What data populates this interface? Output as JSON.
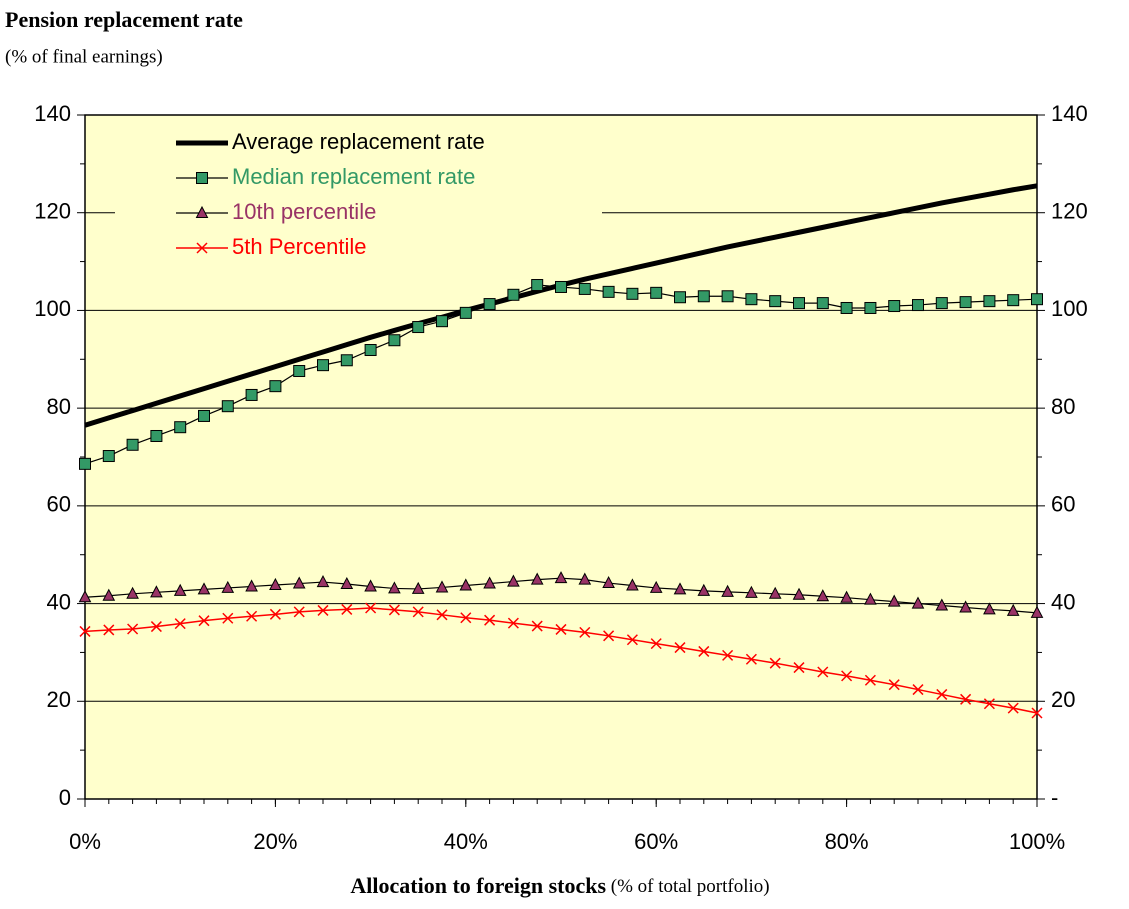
{
  "chart_data": {
    "type": "line",
    "title": "Pension replacement rate",
    "subtitle": "(% of final earnings)",
    "x_label": "Allocation to foreign stocks",
    "x_label_note": " (% of total portfolio)",
    "x": [
      0,
      2.5,
      5,
      7.5,
      10,
      12.5,
      15,
      17.5,
      20,
      22.5,
      25,
      27.5,
      30,
      32.5,
      35,
      37.5,
      40,
      42.5,
      45,
      47.5,
      50,
      52.5,
      55,
      57.5,
      60,
      62.5,
      65,
      67.5,
      70,
      72.5,
      75,
      77.5,
      80,
      82.5,
      85,
      87.5,
      90,
      92.5,
      95,
      97.5,
      100
    ],
    "xlim": [
      0,
      100
    ],
    "xticks": [
      {
        "value": 0,
        "label": "0%"
      },
      {
        "value": 20,
        "label": "20%"
      },
      {
        "value": 40,
        "label": "40%"
      },
      {
        "value": 60,
        "label": "60%"
      },
      {
        "value": 80,
        "label": "80%"
      },
      {
        "value": 100,
        "label": "100%"
      }
    ],
    "ylim": [
      0,
      140
    ],
    "yticks": [
      0,
      20,
      40,
      60,
      80,
      100,
      120,
      140
    ],
    "y2lim": [
      0,
      140
    ],
    "y2ticks": [
      {
        "value": 0,
        "label": "-"
      },
      20,
      40,
      60,
      80,
      100,
      120,
      140
    ],
    "grid": true,
    "background": "#ffffcc",
    "series": [
      {
        "name": "Average replacement rate",
        "color": "#000000",
        "line_color": "#000000",
        "line_width": 5,
        "marker": "none",
        "values": [
          76.5,
          78,
          79.5,
          81,
          82.5,
          84,
          85.5,
          87,
          88.5,
          90,
          91.5,
          93,
          94.5,
          95.9,
          97.3,
          98.6,
          100,
          101.3,
          102.6,
          103.9,
          105.2,
          106.4,
          107.5,
          108.6,
          109.7,
          110.8,
          111.9,
          113,
          114,
          115,
          116,
          117,
          118,
          119,
          120,
          121,
          122,
          122.9,
          123.8,
          124.7,
          125.5
        ]
      },
      {
        "name": "Median replacement rate",
        "color": "#339966",
        "line_color": "#000000",
        "line_width": 1.2,
        "marker": "square",
        "values": [
          68.6,
          70.2,
          72.5,
          74.3,
          76.1,
          78.4,
          80.4,
          82.7,
          84.5,
          87.6,
          88.8,
          89.8,
          91.9,
          93.9,
          96.6,
          97.8,
          99.5,
          101.3,
          103.2,
          105.2,
          104.8,
          104.4,
          103.8,
          103.4,
          103.6,
          102.7,
          102.9,
          102.9,
          102.3,
          101.9,
          101.5,
          101.5,
          100.5,
          100.5,
          100.9,
          101.1,
          101.5,
          101.7,
          101.9,
          102.1,
          102.3
        ]
      },
      {
        "name": "10th percentile",
        "color": "#993366",
        "line_color": "#000000",
        "line_width": 1.2,
        "marker": "triangle",
        "values": [
          41.3,
          41.6,
          42,
          42.3,
          42.6,
          42.9,
          43.2,
          43.5,
          43.8,
          44.1,
          44.4,
          44,
          43.5,
          43.1,
          43,
          43.3,
          43.7,
          44.1,
          44.5,
          44.9,
          45.2,
          44.9,
          44.2,
          43.7,
          43.2,
          42.9,
          42.6,
          42.4,
          42.2,
          42,
          41.8,
          41.5,
          41.2,
          40.8,
          40.4,
          40,
          39.6,
          39.2,
          38.8,
          38.5,
          38.1
        ]
      },
      {
        "name": "5th Percentile",
        "color": "#ff0000",
        "line_color": "#ff0000",
        "line_width": 1.5,
        "marker": "x",
        "values": [
          34.3,
          34.6,
          34.8,
          35.3,
          35.9,
          36.5,
          37,
          37.4,
          37.8,
          38.3,
          38.6,
          38.8,
          39.1,
          38.7,
          38.3,
          37.7,
          37.1,
          36.6,
          36,
          35.4,
          34.7,
          34.1,
          33.4,
          32.6,
          31.8,
          31,
          30.2,
          29.4,
          28.6,
          27.8,
          26.9,
          26,
          25.2,
          24.3,
          23.4,
          22.4,
          21.4,
          20.4,
          19.5,
          18.6,
          17.6
        ]
      }
    ]
  }
}
